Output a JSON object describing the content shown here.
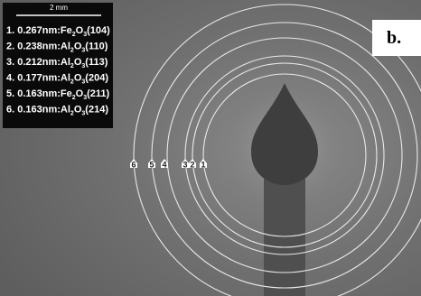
{
  "scale_bar": "2 mm",
  "panel_label": "b.",
  "legend": [
    [
      "1. 0.267nm:Fe",
      "2",
      "O",
      "3",
      "(104)"
    ],
    [
      "2. 0.238nm:Al",
      "2",
      "O",
      "3",
      "(110)"
    ],
    [
      "3. 0.212nm:Al",
      "2",
      "O",
      "3",
      "(113)"
    ],
    [
      "4. 0.177nm:Al",
      "2",
      "O",
      "3",
      "(204)"
    ],
    [
      "5. 0.163nm:Fe",
      "2",
      "O",
      "3",
      "(211)"
    ],
    [
      "6. 0.163nm:Al",
      "2",
      "O",
      "3",
      "(214)"
    ]
  ],
  "ring_markers": [
    "6",
    "5",
    "4",
    "3",
    "2",
    "1"
  ]
}
